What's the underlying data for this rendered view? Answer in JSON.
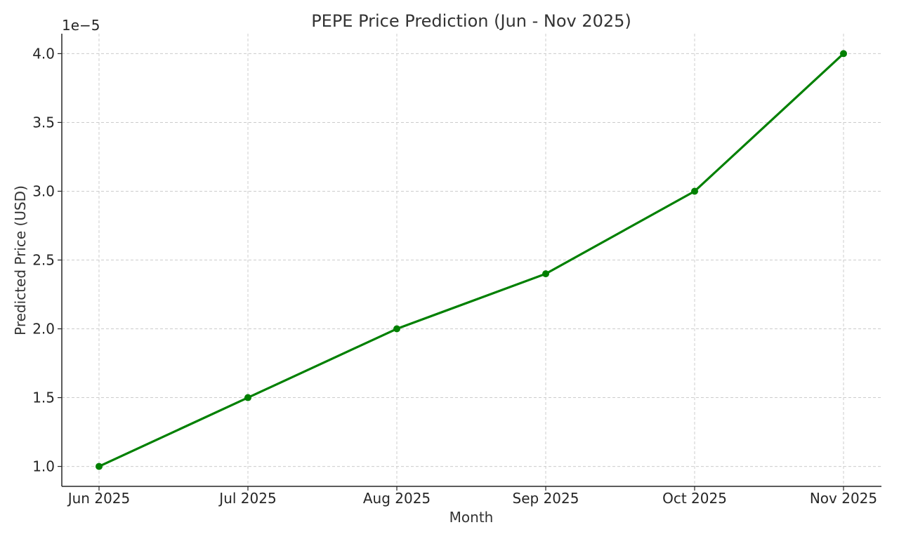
{
  "chart_data": {
    "type": "line",
    "title": "PEPE Price Prediction (Jun - Nov 2025)",
    "xlabel": "Month",
    "ylabel": "Predicted Price (USD)",
    "y_offset_label": "1e−5",
    "categories": [
      "Jun 2025",
      "Jul 2025",
      "Aug 2025",
      "Sep 2025",
      "Oct 2025",
      "Nov 2025"
    ],
    "series": [
      {
        "values": [
          1e-05,
          1.5e-05,
          2e-05,
          2.4e-05,
          3e-05,
          4e-05
        ],
        "color": "#008000",
        "marker": "circle"
      }
    ],
    "y_ticks": [
      1e-05,
      1.5e-05,
      2e-05,
      2.5e-05,
      3e-05,
      3.5e-05,
      4e-05
    ],
    "y_tick_labels": [
      "1.0",
      "1.5",
      "2.0",
      "2.5",
      "3.0",
      "3.5",
      "4.0"
    ],
    "ylim": [
      8.55e-06,
      4.145e-05
    ],
    "grid": true,
    "grid_style": "dashed"
  }
}
